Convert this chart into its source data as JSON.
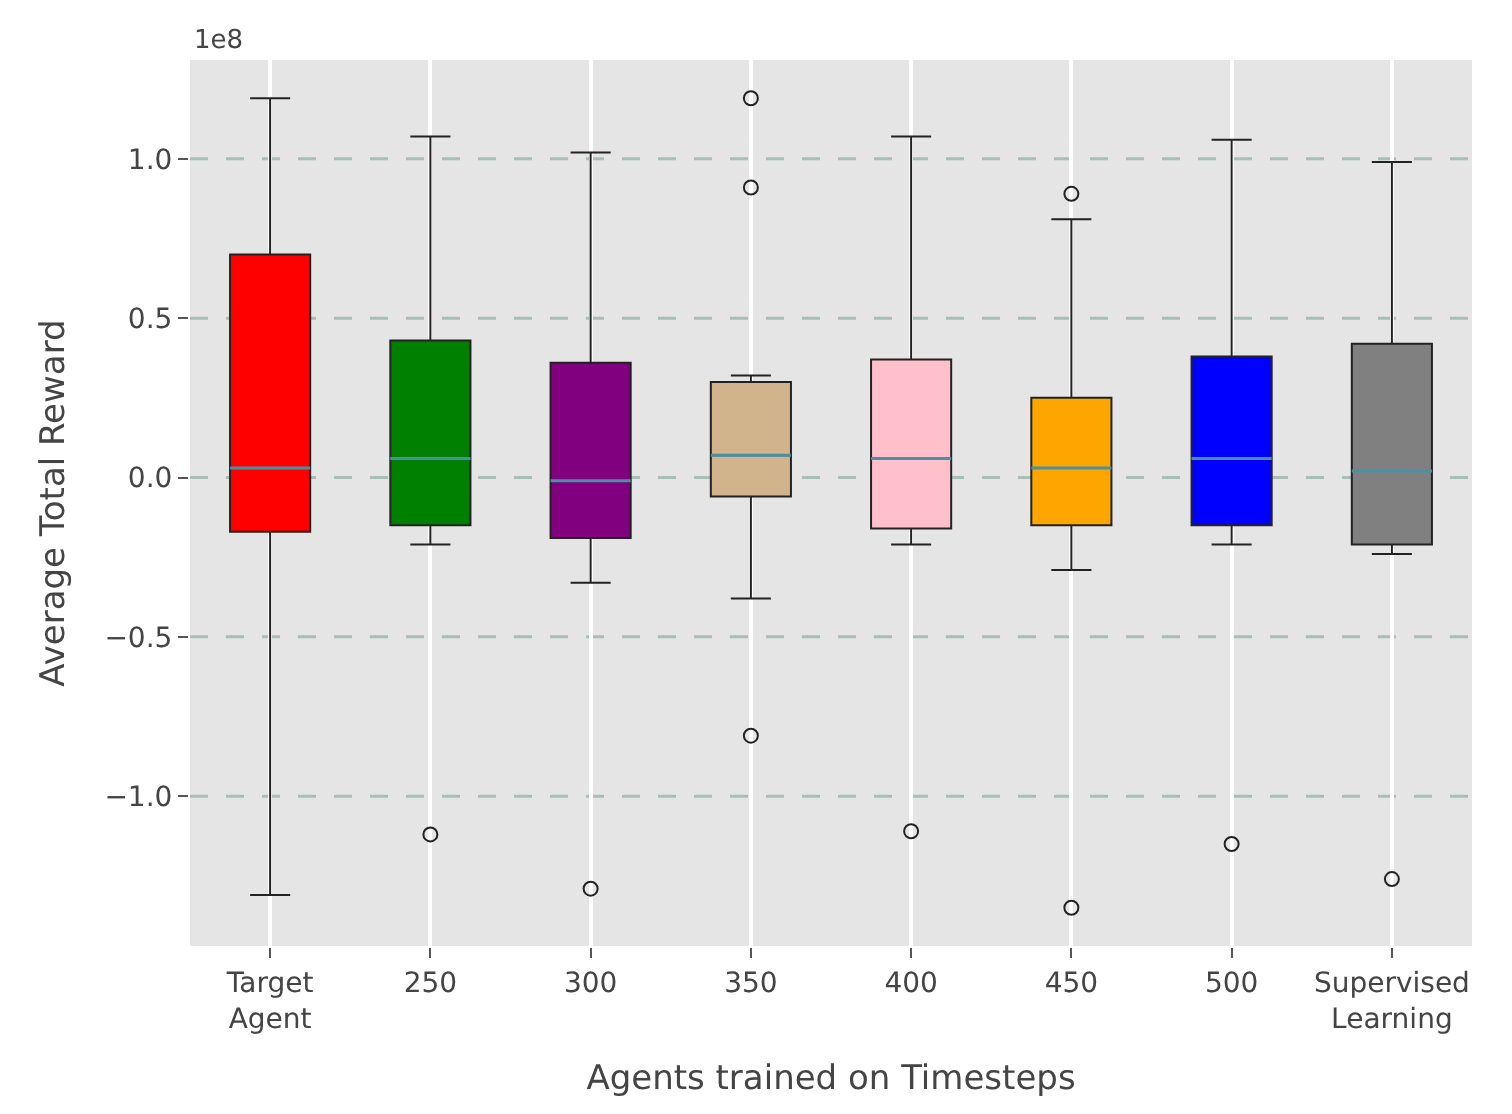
{
  "chart_data": {
    "type": "box",
    "xlabel": "Agents trained on Timesteps",
    "ylabel": "Average Total Reward",
    "annotations": [
      "1e8"
    ],
    "categories": [
      "Target Agent",
      "250",
      "300",
      "350",
      "400",
      "450",
      "500",
      "Supervised Learning"
    ],
    "colors": [
      "#ff0000",
      "#008000",
      "#800080",
      "#d2b48c",
      "#ffc0cb",
      "#ffa500",
      "#0000ff",
      "#808080"
    ],
    "boxes": [
      {
        "low": -1.31,
        "q1": -0.17,
        "median": 0.03,
        "q3": 0.7,
        "high": 1.19
      },
      {
        "low": -0.21,
        "q1": -0.15,
        "median": 0.06,
        "q3": 0.43,
        "high": 1.07,
        "outliers": [
          -1.12
        ]
      },
      {
        "low": -0.33,
        "q1": -0.19,
        "median": -0.01,
        "q3": 0.36,
        "high": 1.02,
        "outliers": [
          -1.29
        ]
      },
      {
        "low": -0.38,
        "q1": -0.06,
        "median": 0.07,
        "q3": 0.3,
        "high": 0.32,
        "outliers": [
          1.19,
          0.91,
          -0.81
        ]
      },
      {
        "low": -0.21,
        "q1": -0.16,
        "median": 0.06,
        "q3": 0.37,
        "high": 1.07,
        "outliers": [
          -1.11
        ]
      },
      {
        "low": -0.29,
        "q1": -0.15,
        "median": 0.03,
        "q3": 0.25,
        "high": 0.81,
        "outliers": [
          0.89,
          -1.35
        ]
      },
      {
        "low": -0.21,
        "q1": -0.15,
        "median": 0.06,
        "q3": 0.38,
        "high": 1.06,
        "outliers": [
          -1.15
        ]
      },
      {
        "low": -0.24,
        "q1": -0.21,
        "median": 0.02,
        "q3": 0.42,
        "high": 0.99,
        "outliers": [
          -1.26
        ]
      }
    ],
    "ylim": [
      -1.47,
      1.31
    ],
    "yticks": [
      {
        "value": -1.0,
        "label": "−1.0"
      },
      {
        "value": -0.5,
        "label": "−0.5"
      },
      {
        "value": 0,
        "label": "0.0"
      },
      {
        "value": 0.5,
        "label": "0.5"
      },
      {
        "value": 1.0,
        "label": "1.0"
      }
    ],
    "grid": true,
    "marker": "circle"
  }
}
